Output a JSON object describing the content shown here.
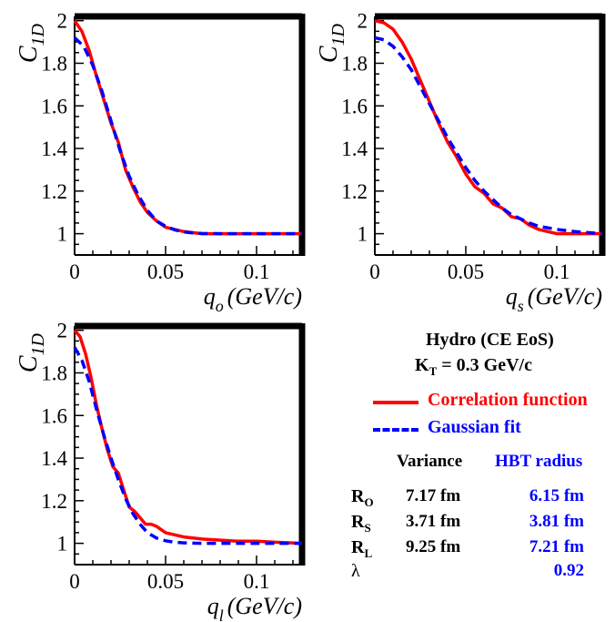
{
  "colors": {
    "correlation": "#ff0000",
    "gaussian": "#0000ff",
    "frame": "#000000"
  },
  "chart_data": [
    {
      "type": "line",
      "panel": "out",
      "xlabel_main": "q",
      "xlabel_sub": "o",
      "xlabel_unit": "(GeV/c)",
      "ylabel_main": "C",
      "ylabel_sub": "1D",
      "xlim": [
        0,
        0.125
      ],
      "ylim": [
        0.9,
        2.02
      ],
      "xticks": [
        "0",
        "0.05",
        "0.1"
      ],
      "yticks": [
        "1",
        "1.2",
        "1.4",
        "1.6",
        "1.8",
        "2"
      ],
      "series": [
        {
          "name": "Correlation function",
          "style": "solid",
          "x": [
            0,
            0.004,
            0.008,
            0.012,
            0.016,
            0.02,
            0.024,
            0.028,
            0.032,
            0.036,
            0.04,
            0.045,
            0.05,
            0.055,
            0.06,
            0.07,
            0.08,
            0.09,
            0.1,
            0.11,
            0.125
          ],
          "y": [
            2.0,
            1.95,
            1.86,
            1.74,
            1.63,
            1.52,
            1.43,
            1.3,
            1.22,
            1.15,
            1.1,
            1.06,
            1.03,
            1.02,
            1.01,
            1.0,
            1.0,
            1.0,
            1.0,
            1.0,
            1.0
          ]
        },
        {
          "name": "Gaussian fit",
          "style": "dashed",
          "x": [
            0,
            0.005,
            0.01,
            0.015,
            0.02,
            0.025,
            0.03,
            0.035,
            0.04,
            0.045,
            0.05,
            0.055,
            0.06,
            0.065,
            0.07,
            0.08,
            0.09,
            0.1,
            0.125
          ],
          "y": [
            1.92,
            1.88,
            1.79,
            1.67,
            1.53,
            1.39,
            1.27,
            1.18,
            1.11,
            1.06,
            1.035,
            1.018,
            1.008,
            1.004,
            1.001,
            1.0,
            1.0,
            1.0,
            1.0
          ]
        }
      ]
    },
    {
      "type": "line",
      "panel": "side",
      "xlabel_main": "q",
      "xlabel_sub": "s",
      "xlabel_unit": "(GeV/c)",
      "ylabel_main": "C",
      "ylabel_sub": "1D",
      "xlim": [
        0,
        0.125
      ],
      "ylim": [
        0.9,
        2.02
      ],
      "xticks": [
        "0",
        "0.05",
        "0.1"
      ],
      "yticks": [
        "1",
        "1.2",
        "1.4",
        "1.6",
        "1.8",
        "2"
      ],
      "series": [
        {
          "name": "Correlation function",
          "style": "solid",
          "x": [
            0,
            0.005,
            0.01,
            0.015,
            0.02,
            0.025,
            0.03,
            0.035,
            0.04,
            0.045,
            0.05,
            0.055,
            0.06,
            0.065,
            0.07,
            0.075,
            0.08,
            0.085,
            0.09,
            0.095,
            0.1,
            0.11,
            0.125
          ],
          "y": [
            2.0,
            1.99,
            1.96,
            1.9,
            1.82,
            1.72,
            1.62,
            1.52,
            1.43,
            1.36,
            1.28,
            1.22,
            1.19,
            1.14,
            1.12,
            1.08,
            1.07,
            1.04,
            1.02,
            1.01,
            1.0,
            1.0,
            1.0
          ]
        },
        {
          "name": "Gaussian fit",
          "style": "dashed",
          "x": [
            0,
            0.005,
            0.01,
            0.015,
            0.02,
            0.025,
            0.03,
            0.035,
            0.04,
            0.045,
            0.05,
            0.055,
            0.06,
            0.065,
            0.07,
            0.075,
            0.08,
            0.085,
            0.09,
            0.1,
            0.11,
            0.125
          ],
          "y": [
            1.92,
            1.91,
            1.88,
            1.83,
            1.77,
            1.69,
            1.61,
            1.53,
            1.45,
            1.38,
            1.31,
            1.25,
            1.2,
            1.16,
            1.12,
            1.09,
            1.07,
            1.05,
            1.035,
            1.02,
            1.01,
            1.0
          ]
        }
      ]
    },
    {
      "type": "line",
      "panel": "long",
      "xlabel_main": "q",
      "xlabel_sub": "l",
      "xlabel_unit": "(GeV/c)",
      "ylabel_main": "C",
      "ylabel_sub": "1D",
      "xlim": [
        0,
        0.125
      ],
      "ylim": [
        0.9,
        2.02
      ],
      "xticks": [
        "0",
        "0.05",
        "0.1"
      ],
      "yticks": [
        "1",
        "1.2",
        "1.4",
        "1.6",
        "1.8",
        "2"
      ],
      "series": [
        {
          "name": "Correlation function",
          "style": "solid",
          "x": [
            0,
            0.003,
            0.006,
            0.009,
            0.012,
            0.015,
            0.018,
            0.021,
            0.024,
            0.027,
            0.03,
            0.033,
            0.036,
            0.039,
            0.042,
            0.045,
            0.05,
            0.055,
            0.06,
            0.07,
            0.08,
            0.09,
            0.1,
            0.11,
            0.125
          ],
          "y": [
            2.0,
            1.97,
            1.89,
            1.78,
            1.65,
            1.54,
            1.44,
            1.36,
            1.33,
            1.25,
            1.17,
            1.15,
            1.12,
            1.09,
            1.09,
            1.08,
            1.05,
            1.04,
            1.03,
            1.02,
            1.015,
            1.01,
            1.01,
            1.005,
            1.0
          ]
        },
        {
          "name": "Gaussian fit",
          "style": "dashed",
          "x": [
            0,
            0.004,
            0.008,
            0.012,
            0.016,
            0.02,
            0.024,
            0.028,
            0.032,
            0.036,
            0.04,
            0.045,
            0.05,
            0.055,
            0.06,
            0.07,
            0.08,
            0.09,
            0.1,
            0.125
          ],
          "y": [
            1.92,
            1.86,
            1.76,
            1.63,
            1.51,
            1.4,
            1.3,
            1.21,
            1.14,
            1.09,
            1.05,
            1.025,
            1.012,
            1.005,
            1.002,
            1.0,
            1.0,
            1.0,
            1.0,
            1.0
          ]
        }
      ]
    }
  ],
  "info": {
    "model": "Hydro (CE EoS)",
    "kt_label": "K",
    "kt_sub": "T",
    "kt_value": " = 0.3 GeV/c"
  },
  "legend": {
    "correlation_label": "Correlation function",
    "gaussian_label": "Gaussian fit"
  },
  "table": {
    "col_variance": "Variance",
    "col_hbt": "HBT radius",
    "rows": [
      {
        "label": "R",
        "sub": "O",
        "variance": "7.17 fm",
        "hbt": "6.15 fm"
      },
      {
        "label": "R",
        "sub": "S",
        "variance": "3.71 fm",
        "hbt": "3.81 fm"
      },
      {
        "label": "R",
        "sub": "L",
        "variance": "9.25 fm",
        "hbt": "7.21 fm"
      },
      {
        "label": "λ",
        "sub": "",
        "variance": "",
        "hbt": "0.92"
      }
    ]
  }
}
